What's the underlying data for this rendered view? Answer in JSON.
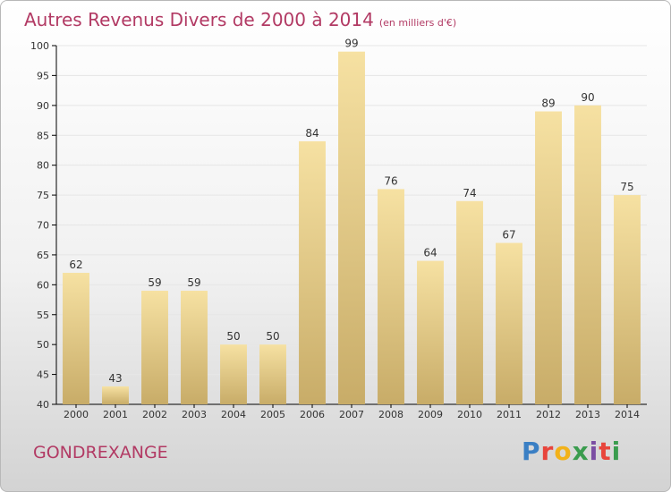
{
  "header": {
    "title": "Autres Revenus Divers de 2000 à 2014",
    "unit": "(en milliers d'€)"
  },
  "footer": {
    "location": "GONDREXANGE",
    "brand": "Proxiti",
    "brand_colors": [
      "#3a7fc4",
      "#e8453c",
      "#f2b21a",
      "#3a9c4e",
      "#7b4ea3",
      "#e8453c",
      "#3a9c4e"
    ]
  },
  "colors": {
    "accent": "#b23a64",
    "bar_light": "#f6e1a2",
    "bar_dark": "#c8ac68",
    "grid": "#e6e6e6",
    "axis": "#000000"
  },
  "chart_data": {
    "type": "bar",
    "title": "Autres Revenus Divers de 2000 à 2014",
    "subtitle": "(en milliers d'€)",
    "xlabel": "",
    "ylabel": "",
    "categories": [
      "2000",
      "2001",
      "2002",
      "2003",
      "2004",
      "2005",
      "2006",
      "2007",
      "2008",
      "2009",
      "2010",
      "2011",
      "2012",
      "2013",
      "2014"
    ],
    "values": [
      62,
      43,
      59,
      59,
      50,
      50,
      84,
      99,
      76,
      64,
      74,
      67,
      89,
      90,
      75
    ],
    "ylim": [
      40,
      100
    ],
    "yticks": [
      40,
      45,
      50,
      55,
      60,
      65,
      70,
      75,
      80,
      85,
      90,
      95,
      100
    ],
    "grid": true,
    "legend": "none"
  }
}
